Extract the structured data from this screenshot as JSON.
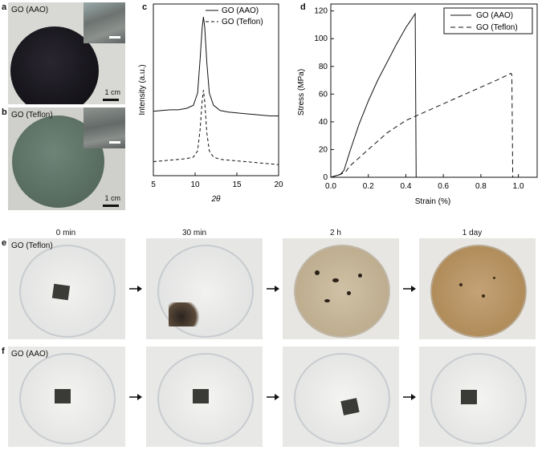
{
  "panels": {
    "a": {
      "letter": "a",
      "sample": "GO (AAO)",
      "scale": "1 cm"
    },
    "b": {
      "letter": "b",
      "sample": "GO (Teflon)",
      "scale": "1 cm"
    },
    "c": {
      "letter": "c"
    },
    "d": {
      "letter": "d"
    },
    "e": {
      "letter": "e",
      "sample": "GO (Teflon)"
    },
    "f": {
      "letter": "f",
      "sample": "GO (AAO)"
    }
  },
  "time_labels": [
    "0 min",
    "30 min",
    "2 h",
    "1 day"
  ],
  "colors": {
    "aao_film": "#1a1a22",
    "teflon_film": "#5e7468",
    "water_brown": "#b89c73"
  },
  "chart_data": [
    {
      "type": "line",
      "panel": "c",
      "xlabel": "2θ",
      "ylabel": "Intensity (a.u.)",
      "xlim": [
        5,
        20
      ],
      "xticks": [
        5,
        10,
        15,
        20
      ],
      "legend_position": "top-right",
      "series": [
        {
          "name": "GO (AAO)",
          "style": "solid",
          "x": [
            5,
            6,
            7,
            8,
            9,
            9.8,
            10.3,
            10.6,
            10.85,
            11.0,
            11.15,
            11.4,
            11.7,
            12.2,
            13,
            14,
            15,
            16,
            17,
            18,
            19,
            20
          ],
          "y": [
            0.38,
            0.385,
            0.39,
            0.39,
            0.4,
            0.42,
            0.5,
            0.72,
            0.93,
            1.0,
            0.93,
            0.7,
            0.5,
            0.42,
            0.385,
            0.375,
            0.37,
            0.365,
            0.36,
            0.355,
            0.35,
            0.35
          ]
        },
        {
          "name": "GO (Teflon)",
          "style": "dashed",
          "x": [
            5,
            6,
            7,
            8,
            9,
            9.8,
            10.3,
            10.6,
            10.85,
            11.0,
            11.15,
            11.4,
            11.7,
            12.2,
            13,
            14,
            15,
            16,
            17,
            18,
            19,
            20
          ],
          "y": [
            0.05,
            0.055,
            0.06,
            0.065,
            0.07,
            0.08,
            0.12,
            0.26,
            0.45,
            0.52,
            0.44,
            0.24,
            0.12,
            0.08,
            0.065,
            0.06,
            0.055,
            0.05,
            0.045,
            0.04,
            0.035,
            0.03
          ]
        }
      ]
    },
    {
      "type": "line",
      "panel": "d",
      "xlabel": "Strain (%)",
      "ylabel": "Stress (MPa)",
      "xlim": [
        0,
        1.1
      ],
      "ylim": [
        0,
        125
      ],
      "xticks": [
        "0.0",
        "0.2",
        "0.4",
        "0.6",
        "0.8",
        "1.0"
      ],
      "yticks": [
        0,
        20,
        40,
        60,
        80,
        100,
        120
      ],
      "legend_position": "top-right",
      "series": [
        {
          "name": "GO (AAO)",
          "style": "solid",
          "x": [
            0.0,
            0.05,
            0.07,
            0.1,
            0.15,
            0.2,
            0.25,
            0.3,
            0.35,
            0.4,
            0.44,
            0.45,
            0.455
          ],
          "y": [
            0,
            2,
            5,
            18,
            38,
            55,
            70,
            83,
            96,
            108,
            116,
            118,
            0
          ]
        },
        {
          "name": "GO (Teflon)",
          "style": "dashed",
          "x": [
            0.0,
            0.05,
            0.08,
            0.1,
            0.2,
            0.3,
            0.4,
            0.5,
            0.6,
            0.7,
            0.8,
            0.9,
            0.96,
            0.965,
            0.97
          ],
          "y": [
            0,
            2,
            4,
            8,
            20,
            32,
            41,
            47,
            53,
            59,
            65,
            71,
            75,
            74,
            0
          ]
        }
      ]
    }
  ]
}
